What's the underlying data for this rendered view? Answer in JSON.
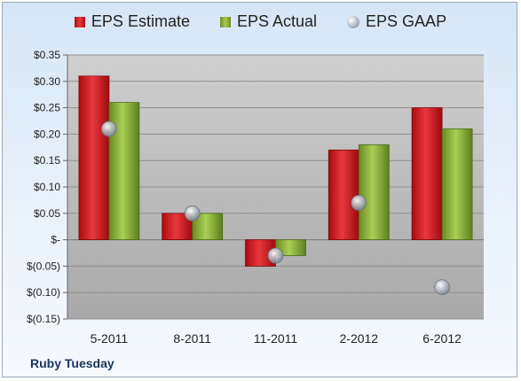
{
  "company": "Ruby Tuesday",
  "colors": {
    "estimate": "#d42026",
    "actual": "#8db23c",
    "gaap": "#a9b1bb"
  },
  "chart_data": {
    "type": "bar",
    "categories": [
      "5-2011",
      "8-2011",
      "11-2011",
      "2-2012",
      "6-2012"
    ],
    "series": [
      {
        "name": "EPS Estimate",
        "values": [
          0.31,
          0.05,
          -0.05,
          0.17,
          0.25
        ]
      },
      {
        "name": "EPS Actual",
        "values": [
          0.26,
          0.05,
          -0.03,
          0.18,
          0.21
        ]
      },
      {
        "name": "EPS GAAP",
        "values": [
          0.21,
          0.05,
          -0.03,
          0.07,
          -0.09
        ],
        "style": "marker"
      }
    ],
    "yticks": [
      0.35,
      0.3,
      0.25,
      0.2,
      0.15,
      0.1,
      0.05,
      0,
      -0.05,
      -0.1,
      -0.15
    ],
    "ytick_labels": [
      "$0.35",
      "$0.30",
      "$0.25",
      "$0.20",
      "$0.15",
      "$0.10",
      "$0.05",
      "$-",
      "$(0.05)",
      "$(0.10)",
      "$(0.15)"
    ],
    "ylim": [
      -0.15,
      0.35
    ],
    "legend": "top",
    "grid": true
  }
}
